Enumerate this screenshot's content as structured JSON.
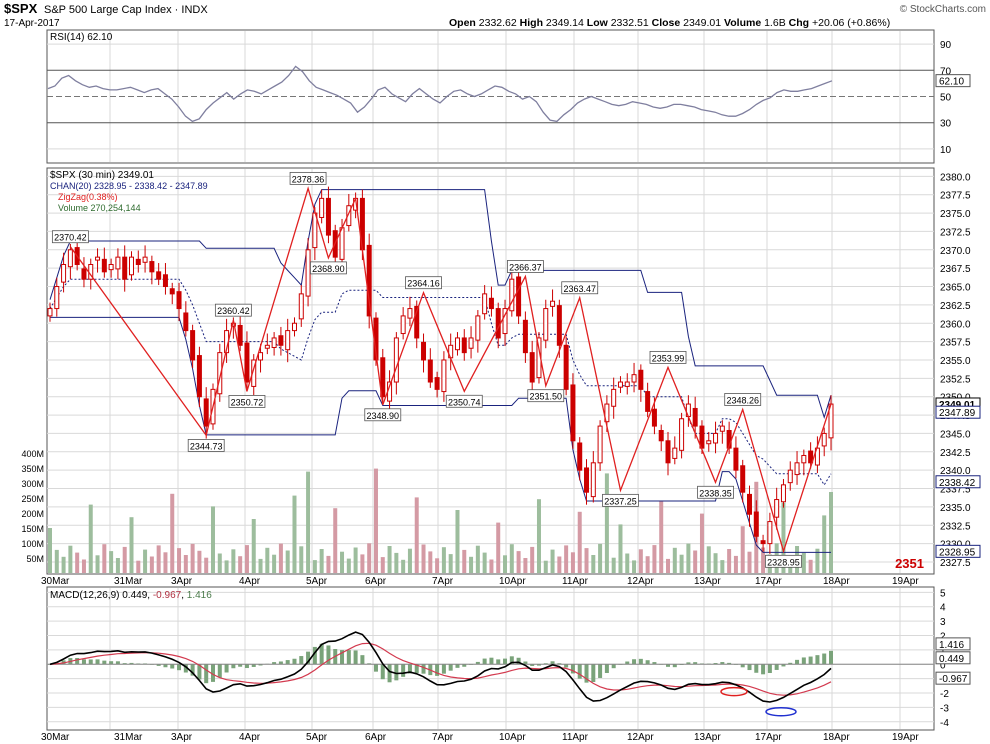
{
  "header": {
    "symbol": "$SPX",
    "name": "S&P 500 Large Cap Index",
    "exchange": "INDX",
    "date": "17-Apr-2017",
    "open_label": "Open",
    "open": "2332.62",
    "high_label": "High",
    "high": "2349.14",
    "low_label": "Low",
    "low": "2332.51",
    "close_label": "Close",
    "close": "2349.01",
    "volume_label": "Volume",
    "volume": "1.6B",
    "chg_label": "Chg",
    "chg": "+20.06 (+0.86%)",
    "watermark": "© StockCharts.com",
    "big_number": "2351"
  },
  "colors": {
    "grid": "#d9d9d9",
    "border": "#555555",
    "price": "#cc0000",
    "channel": "#1a237e",
    "zigzag": "#e02020",
    "rsi": "#7f7f9f",
    "vol_up": "#9dbd9d",
    "vol_down": "#d49aa4",
    "macd": "#000000",
    "signal": "#d33a4f",
    "hist": "#7aa37a",
    "big_number": "#cc0000"
  },
  "chart_data": [
    {
      "type": "line",
      "panel": "rsi",
      "legend": "RSI(14) 62.10",
      "ylim": [
        0,
        100
      ],
      "yticks": [
        10,
        30,
        50,
        70,
        90
      ],
      "last_value": "62.10",
      "values": [
        56,
        58,
        64,
        66,
        62,
        59,
        57,
        58,
        56,
        55,
        55,
        56,
        57,
        55,
        53,
        55,
        56,
        52,
        48,
        42,
        35,
        31,
        33,
        40,
        45,
        49,
        53,
        48,
        52,
        55,
        54,
        52,
        55,
        58,
        61,
        66,
        73,
        69,
        62,
        57,
        55,
        53,
        51,
        48,
        45,
        38,
        42,
        48,
        55,
        57,
        52,
        49,
        46,
        52,
        56,
        52,
        48,
        45,
        50,
        54,
        55,
        52,
        50,
        52,
        55,
        58,
        57,
        54,
        52,
        48,
        50,
        46,
        38,
        32,
        31,
        36,
        40,
        45,
        48,
        50,
        48,
        46,
        44,
        43,
        44,
        46,
        45,
        44,
        42,
        41,
        42,
        44,
        44,
        43,
        42,
        40,
        39,
        38,
        36,
        35,
        35,
        37,
        40,
        44,
        47,
        49,
        53,
        55,
        54,
        54,
        55,
        56,
        58,
        60,
        62
      ]
    },
    {
      "type": "candlestick",
      "panel": "price",
      "legend": [
        "$SPX (30 min) 2349.01",
        "CHAN(20) 2328.95 - 2338.42 - 2347.89",
        "ZigZag(0.38%)",
        "Volume 270,254,144"
      ],
      "ylim": [
        2326,
        2381
      ],
      "yticks": [
        2327.5,
        2330.0,
        2332.5,
        2335.0,
        2337.5,
        2340.0,
        2342.5,
        2345.0,
        2347.5,
        2350.0,
        2352.5,
        2355.0,
        2357.5,
        2360.0,
        2362.5,
        2365.0,
        2367.5,
        2370.0,
        2372.5,
        2375.0,
        2377.5,
        2380.0
      ],
      "y_value_labels": [
        "2349.01",
        "2347.89",
        "2338.42",
        "2328.95"
      ],
      "x_labels": [
        "30Mar",
        "31Mar",
        "3Apr",
        "4Apr",
        "5Apr",
        "6Apr",
        "7Apr",
        "10Apr",
        "11Apr",
        "12Apr",
        "13Apr",
        "17Apr",
        "18Apr",
        "19Apr"
      ],
      "closes": [
        2362,
        2365,
        2368,
        2370,
        2368,
        2366,
        2368,
        2369,
        2367,
        2368,
        2369,
        2366,
        2369,
        2368,
        2369,
        2367,
        2366,
        2365,
        2364,
        2362,
        2359,
        2355,
        2350,
        2346,
        2351,
        2356,
        2359,
        2360,
        2357,
        2352,
        2355,
        2356,
        2357,
        2358,
        2357,
        2359,
        2360,
        2364,
        2370,
        2375,
        2377,
        2372,
        2369,
        2373,
        2376,
        2377,
        2370,
        2361,
        2355,
        2350,
        2352,
        2358,
        2361,
        2362,
        2358,
        2355,
        2352,
        2351,
        2355,
        2357,
        2358,
        2356,
        2358,
        2361,
        2364,
        2362,
        2358,
        2362,
        2366,
        2361,
        2356,
        2352,
        2358,
        2362,
        2363,
        2357,
        2351,
        2344,
        2340,
        2337,
        2341,
        2346,
        2349,
        2351,
        2352,
        2352,
        2353,
        2351,
        2348,
        2346,
        2344,
        2341,
        2343,
        2347,
        2349,
        2346,
        2343,
        2344,
        2345,
        2346,
        2343,
        2340,
        2337,
        2334,
        2331,
        2330,
        2333,
        2336,
        2338,
        2340,
        2341,
        2342,
        2341,
        2343,
        2345,
        2349
      ],
      "zigzag": [
        {
          "i": 3,
          "v": 2370.42,
          "label": "2370.42"
        },
        {
          "i": 23,
          "v": 2344.73,
          "label": "2344.73"
        },
        {
          "i": 27,
          "v": 2360.42,
          "label": "2360.42"
        },
        {
          "i": 29,
          "v": 2350.72,
          "label": "2350.72"
        },
        {
          "i": 38,
          "v": 2378.36,
          "label": "2378.36"
        },
        {
          "i": 41,
          "v": 2368.9,
          "label": "2368.90"
        },
        {
          "i": 45,
          "v": 2377.0,
          "label": ""
        },
        {
          "i": 49,
          "v": 2348.9,
          "label": "2348.90"
        },
        {
          "i": 55,
          "v": 2364.16,
          "label": "2364.16"
        },
        {
          "i": 61,
          "v": 2350.74,
          "label": "2350.74"
        },
        {
          "i": 70,
          "v": 2366.37,
          "label": "2366.37"
        },
        {
          "i": 73,
          "v": 2351.5,
          "label": "2351.50"
        },
        {
          "i": 78,
          "v": 2363.47,
          "label": "2363.47"
        },
        {
          "i": 84,
          "v": 2337.25,
          "label": "2337.25"
        },
        {
          "i": 91,
          "v": 2353.99,
          "label": "2353.99"
        },
        {
          "i": 98,
          "v": 2338.35,
          "label": "2338.35"
        },
        {
          "i": 102,
          "v": 2348.26,
          "label": "2348.26"
        },
        {
          "i": 108,
          "v": 2328.95,
          "label": "2328.95"
        },
        {
          "i": 115,
          "v": 2349.01,
          "label": ""
        }
      ]
    },
    {
      "type": "bar",
      "panel": "volume",
      "yticks": [
        "50M",
        "100M",
        "150M",
        "200M",
        "250M",
        "300M",
        "350M",
        "400M"
      ],
      "ylim": [
        0,
        450
      ]
    },
    {
      "type": "line",
      "panel": "macd",
      "legend_name": "MACD(12,26,9)",
      "legend_values": [
        "0.449",
        "-0.967",
        "1.416"
      ],
      "ylim": [
        -4.5,
        5.3
      ],
      "yticks": [
        -4,
        -3,
        -2,
        -1,
        0,
        1,
        2,
        3,
        4,
        5
      ],
      "value_labels": [
        "1.416",
        "0.449",
        "-0.967"
      ],
      "x_labels": [
        "30Mar",
        "31Mar",
        "3Apr",
        "4Apr",
        "5Apr",
        "6Apr",
        "7Apr",
        "10Apr",
        "11Apr",
        "12Apr",
        "13Apr",
        "17Apr",
        "18Apr",
        "19Apr"
      ]
    }
  ]
}
